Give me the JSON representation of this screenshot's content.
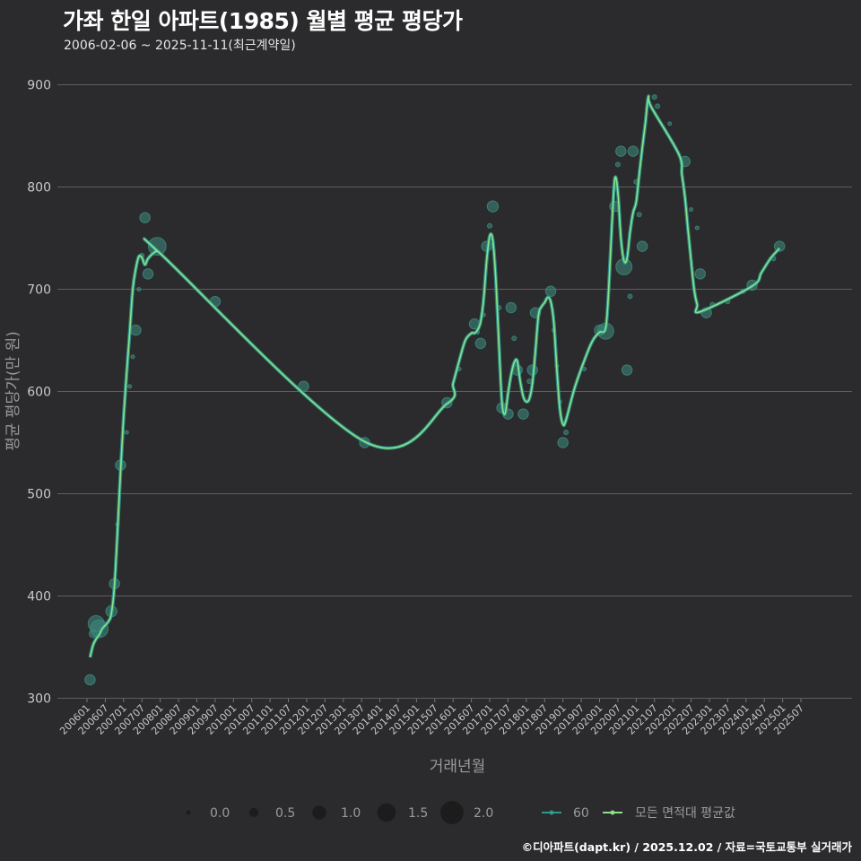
{
  "header": {
    "title": "가좌 한일 아파트(1985) 월별 평균 평당가",
    "subtitle": "2006-02-06 ~ 2025-11-11(최근계약일)"
  },
  "footer": {
    "credit": "©디아파트(dapt.kr) / 2025.12.02 / 자료=국토교통부 실거래가"
  },
  "colors": {
    "background": "#2b2a2c",
    "grid": "#5e5e61",
    "point": "#3d8c80",
    "series_60": "#2a9b8e",
    "series_all": "#8fe08a"
  },
  "chart_data": {
    "type": "scatter",
    "xlabel": "거래년월",
    "ylabel": "평균 평당가(만 원)",
    "ylim": [
      300,
      900
    ],
    "yticks": [
      300,
      400,
      500,
      600,
      700,
      800,
      900
    ],
    "xticks": [
      "200601",
      "200607",
      "200701",
      "200707",
      "200801",
      "200807",
      "200901",
      "200907",
      "201001",
      "201007",
      "201101",
      "201107",
      "201201",
      "201207",
      "201301",
      "201307",
      "201401",
      "201407",
      "201501",
      "201507",
      "201601",
      "201607",
      "201701",
      "201707",
      "201801",
      "201807",
      "201901",
      "201907",
      "202001",
      "202007",
      "202101",
      "202107",
      "202201",
      "202207",
      "202301",
      "202307",
      "202401",
      "202407",
      "202501",
      "202507"
    ],
    "size_legend": {
      "title": "",
      "values": [
        "0.0",
        "0.5",
        "1.0",
        "1.5",
        "2.0"
      ]
    },
    "series": [
      {
        "name": "60",
        "kind": "points",
        "points": [
          {
            "t": "200602",
            "v": 318,
            "s": 0.9
          },
          {
            "t": "200603",
            "v": 363,
            "s": 0.6
          },
          {
            "t": "200604",
            "v": 373,
            "s": 1.6
          },
          {
            "t": "200605",
            "v": 368,
            "s": 1.8
          },
          {
            "t": "200609",
            "v": 385,
            "s": 1.0
          },
          {
            "t": "200610",
            "v": 412,
            "s": 0.9
          },
          {
            "t": "200611",
            "v": 470,
            "s": 0.1
          },
          {
            "t": "200612",
            "v": 528,
            "s": 0.9
          },
          {
            "t": "200702",
            "v": 560,
            "s": 0.1
          },
          {
            "t": "200703",
            "v": 605,
            "s": 0.1
          },
          {
            "t": "200704",
            "v": 634,
            "s": 0.1
          },
          {
            "t": "200705",
            "v": 660,
            "s": 0.9
          },
          {
            "t": "200706",
            "v": 700,
            "s": 0.1
          },
          {
            "t": "200707",
            "v": 733,
            "s": 0.2
          },
          {
            "t": "200708",
            "v": 770,
            "s": 0.9
          },
          {
            "t": "200709",
            "v": 715,
            "s": 0.9
          },
          {
            "t": "200712",
            "v": 742,
            "s": 1.8
          },
          {
            "t": "200907",
            "v": 688,
            "s": 0.9
          },
          {
            "t": "201112",
            "v": 605,
            "s": 0.9
          },
          {
            "t": "201308",
            "v": 550,
            "s": 0.9
          },
          {
            "t": "201511",
            "v": 589,
            "s": 0.9
          },
          {
            "t": "201603",
            "v": 622,
            "s": 0.1
          },
          {
            "t": "201608",
            "v": 666,
            "s": 0.9
          },
          {
            "t": "201609",
            "v": 658,
            "s": 0.1
          },
          {
            "t": "201610",
            "v": 647,
            "s": 0.9
          },
          {
            "t": "201611",
            "v": 675,
            "s": 0.1
          },
          {
            "t": "201612",
            "v": 742,
            "s": 0.9
          },
          {
            "t": "201701",
            "v": 762,
            "s": 0.2
          },
          {
            "t": "201702",
            "v": 781,
            "s": 1.0
          },
          {
            "t": "201704",
            "v": 682,
            "s": 0.2
          },
          {
            "t": "201705",
            "v": 584,
            "s": 0.9
          },
          {
            "t": "201706",
            "v": 585,
            "s": 0.2
          },
          {
            "t": "201707",
            "v": 578,
            "s": 0.9
          },
          {
            "t": "201708",
            "v": 682,
            "s": 0.9
          },
          {
            "t": "201709",
            "v": 652,
            "s": 0.2
          },
          {
            "t": "201710",
            "v": 621,
            "s": 0.9
          },
          {
            "t": "201712",
            "v": 578,
            "s": 0.9
          },
          {
            "t": "201802",
            "v": 610,
            "s": 0.2
          },
          {
            "t": "201803",
            "v": 621,
            "s": 0.9
          },
          {
            "t": "201804",
            "v": 677,
            "s": 0.9
          },
          {
            "t": "201809",
            "v": 698,
            "s": 0.9
          },
          {
            "t": "201810",
            "v": 660,
            "s": 0.1
          },
          {
            "t": "201811",
            "v": 625,
            "s": 0.1
          },
          {
            "t": "201812",
            "v": 590,
            "s": 0.1
          },
          {
            "t": "201901",
            "v": 550,
            "s": 0.9
          },
          {
            "t": "201902",
            "v": 560,
            "s": 0.2
          },
          {
            "t": "201908",
            "v": 622,
            "s": 0.1
          },
          {
            "t": "202001",
            "v": 660,
            "s": 0.9
          },
          {
            "t": "202003",
            "v": 659,
            "s": 1.6
          },
          {
            "t": "202006",
            "v": 781,
            "s": 0.9
          },
          {
            "t": "202007",
            "v": 822,
            "s": 0.2
          },
          {
            "t": "202008",
            "v": 835,
            "s": 0.9
          },
          {
            "t": "202009",
            "v": 722,
            "s": 1.6
          },
          {
            "t": "202010",
            "v": 621,
            "s": 0.9
          },
          {
            "t": "202011",
            "v": 693,
            "s": 0.2
          },
          {
            "t": "202012",
            "v": 835,
            "s": 0.9
          },
          {
            "t": "202101",
            "v": 805,
            "s": 0.2
          },
          {
            "t": "202102",
            "v": 773,
            "s": 0.2
          },
          {
            "t": "202103",
            "v": 742,
            "s": 0.9
          },
          {
            "t": "202107",
            "v": 888,
            "s": 0.2
          },
          {
            "t": "202108",
            "v": 879,
            "s": 0.2
          },
          {
            "t": "202112",
            "v": 862,
            "s": 0.1
          },
          {
            "t": "202205",
            "v": 825,
            "s": 0.9
          },
          {
            "t": "202207",
            "v": 778,
            "s": 0.1
          },
          {
            "t": "202209",
            "v": 760,
            "s": 0.1
          },
          {
            "t": "202210",
            "v": 715,
            "s": 0.9
          },
          {
            "t": "202212",
            "v": 677,
            "s": 0.9
          },
          {
            "t": "202302",
            "v": 685,
            "s": 0.2
          },
          {
            "t": "202307",
            "v": 688,
            "s": 0.2
          },
          {
            "t": "202312",
            "v": 698,
            "s": 0.2
          },
          {
            "t": "202403",
            "v": 704,
            "s": 0.9
          },
          {
            "t": "202410",
            "v": 730,
            "s": 0.2
          },
          {
            "t": "202412",
            "v": 742,
            "s": 0.9
          }
        ]
      },
      {
        "name": "모든 면적대 평균값",
        "kind": "smooth-line",
        "points": [
          {
            "t": "200602",
            "v": 340
          },
          {
            "t": "200603",
            "v": 352
          },
          {
            "t": "200604",
            "v": 358
          },
          {
            "t": "200605",
            "v": 362
          },
          {
            "t": "200606",
            "v": 368
          },
          {
            "t": "200608",
            "v": 375
          },
          {
            "t": "200609",
            "v": 383
          },
          {
            "t": "200610",
            "v": 410
          },
          {
            "t": "200611",
            "v": 463
          },
          {
            "t": "200612",
            "v": 522
          },
          {
            "t": "200701",
            "v": 575
          },
          {
            "t": "200702",
            "v": 618
          },
          {
            "t": "200703",
            "v": 658
          },
          {
            "t": "200704",
            "v": 700
          },
          {
            "t": "200705",
            "v": 720
          },
          {
            "t": "200706",
            "v": 732
          },
          {
            "t": "200707",
            "v": 731
          },
          {
            "t": "200708",
            "v": 724
          },
          {
            "t": "200709",
            "v": 730
          },
          {
            "t": "200711",
            "v": 736
          },
          {
            "t": "200712",
            "v": 737
          },
          {
            "t": "200801",
            "v": 735
          },
          {
            "t": "201308",
            "v": 551
          },
          {
            "t": "201511",
            "v": 588
          },
          {
            "t": "201601",
            "v": 608
          },
          {
            "t": "201603",
            "v": 630
          },
          {
            "t": "201605",
            "v": 650
          },
          {
            "t": "201607",
            "v": 657
          },
          {
            "t": "201608",
            "v": 657
          },
          {
            "t": "201609",
            "v": 660
          },
          {
            "t": "201610",
            "v": 668
          },
          {
            "t": "201611",
            "v": 690
          },
          {
            "t": "201612",
            "v": 728
          },
          {
            "t": "201701",
            "v": 752
          },
          {
            "t": "201702",
            "v": 748
          },
          {
            "t": "201703",
            "v": 710
          },
          {
            "t": "201704",
            "v": 648
          },
          {
            "t": "201705",
            "v": 590
          },
          {
            "t": "201706",
            "v": 578
          },
          {
            "t": "201707",
            "v": 598
          },
          {
            "t": "201708",
            "v": 616
          },
          {
            "t": "201709",
            "v": 628
          },
          {
            "t": "201710",
            "v": 630
          },
          {
            "t": "201711",
            "v": 610
          },
          {
            "t": "201712",
            "v": 595
          },
          {
            "t": "201801",
            "v": 590
          },
          {
            "t": "201802",
            "v": 593
          },
          {
            "t": "201803",
            "v": 608
          },
          {
            "t": "201804",
            "v": 640
          },
          {
            "t": "201805",
            "v": 675
          },
          {
            "t": "201806",
            "v": 683
          },
          {
            "t": "201807",
            "v": 687
          },
          {
            "t": "201808",
            "v": 692
          },
          {
            "t": "201809",
            "v": 688
          },
          {
            "t": "201810",
            "v": 668
          },
          {
            "t": "201811",
            "v": 622
          },
          {
            "t": "201812",
            "v": 583
          },
          {
            "t": "201901",
            "v": 568
          },
          {
            "t": "201902",
            "v": 572
          },
          {
            "t": "201905",
            "v": 605
          },
          {
            "t": "201909",
            "v": 638
          },
          {
            "t": "201911",
            "v": 651
          },
          {
            "t": "202001",
            "v": 658
          },
          {
            "t": "202003",
            "v": 662
          },
          {
            "t": "202004",
            "v": 700
          },
          {
            "t": "202005",
            "v": 760
          },
          {
            "t": "202006",
            "v": 808
          },
          {
            "t": "202007",
            "v": 795
          },
          {
            "t": "202008",
            "v": 750
          },
          {
            "t": "202009",
            "v": 728
          },
          {
            "t": "202010",
            "v": 730
          },
          {
            "t": "202011",
            "v": 756
          },
          {
            "t": "202012",
            "v": 775
          },
          {
            "t": "202101",
            "v": 785
          },
          {
            "t": "202102",
            "v": 812
          },
          {
            "t": "202103",
            "v": 838
          },
          {
            "t": "202104",
            "v": 862
          },
          {
            "t": "202105",
            "v": 888
          },
          {
            "t": "202106",
            "v": 878
          },
          {
            "t": "202203",
            "v": 832
          },
          {
            "t": "202204",
            "v": 812
          },
          {
            "t": "202205",
            "v": 790
          },
          {
            "t": "202206",
            "v": 758
          },
          {
            "t": "202207",
            "v": 728
          },
          {
            "t": "202208",
            "v": 700
          },
          {
            "t": "202209",
            "v": 685
          },
          {
            "t": "202210",
            "v": 678
          },
          {
            "t": "202403",
            "v": 703
          },
          {
            "t": "202406",
            "v": 716
          },
          {
            "t": "202409",
            "v": 730
          },
          {
            "t": "202412",
            "v": 740
          }
        ]
      }
    ]
  }
}
